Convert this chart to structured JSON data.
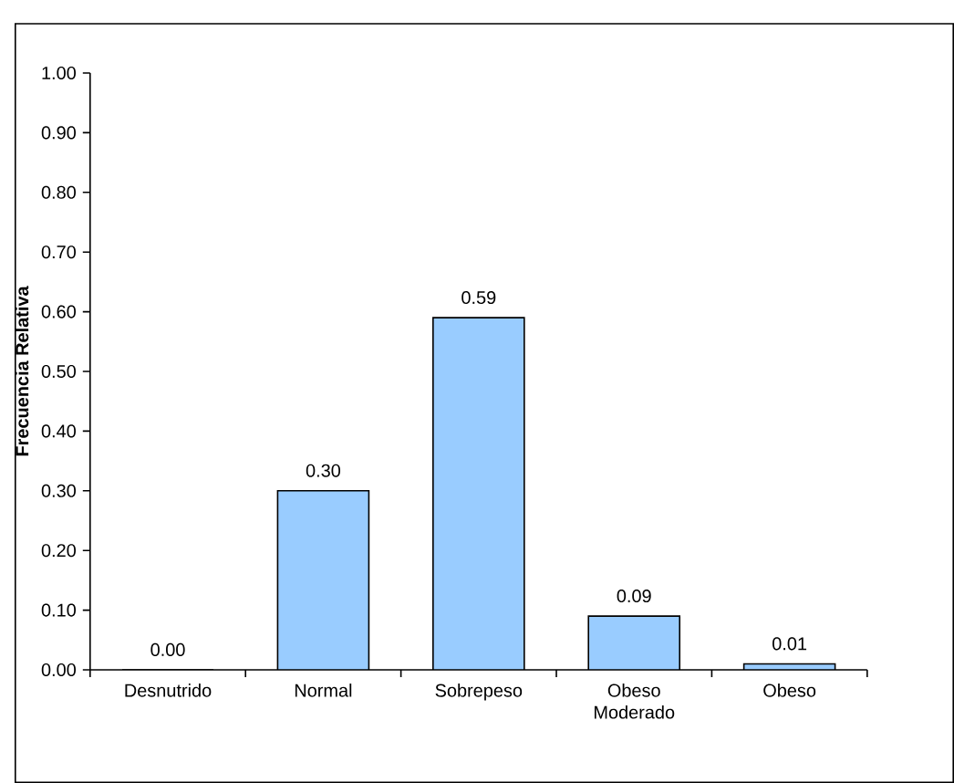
{
  "chart_data": {
    "type": "bar",
    "ylabel": "Frecuencia Relativa",
    "categories": [
      "Desnutrido",
      "Normal",
      "Sobrepeso",
      "Obeso Moderado",
      "Obeso"
    ],
    "values": [
      0.0,
      0.3,
      0.59,
      0.09,
      0.01
    ],
    "value_labels": [
      "0.00",
      "0.30",
      "0.59",
      "0.09",
      "0.01"
    ],
    "color": "#99ccff",
    "ylim": [
      0,
      1
    ],
    "yticks": [
      {
        "value": 0,
        "label": "0.00"
      },
      {
        "value": 0.1,
        "label": "0.10"
      },
      {
        "value": 0.2,
        "label": "0.20"
      },
      {
        "value": 0.3,
        "label": "0.30"
      },
      {
        "value": 0.4,
        "label": "0.40"
      },
      {
        "value": 0.5,
        "label": "0.50"
      },
      {
        "value": 0.6,
        "label": "0.60"
      },
      {
        "value": 0.7,
        "label": "0.70"
      },
      {
        "value": 0.8,
        "label": "0.80"
      },
      {
        "value": 0.9,
        "label": "0.90"
      },
      {
        "value": 1,
        "label": "1.00"
      }
    ],
    "grid": false
  }
}
